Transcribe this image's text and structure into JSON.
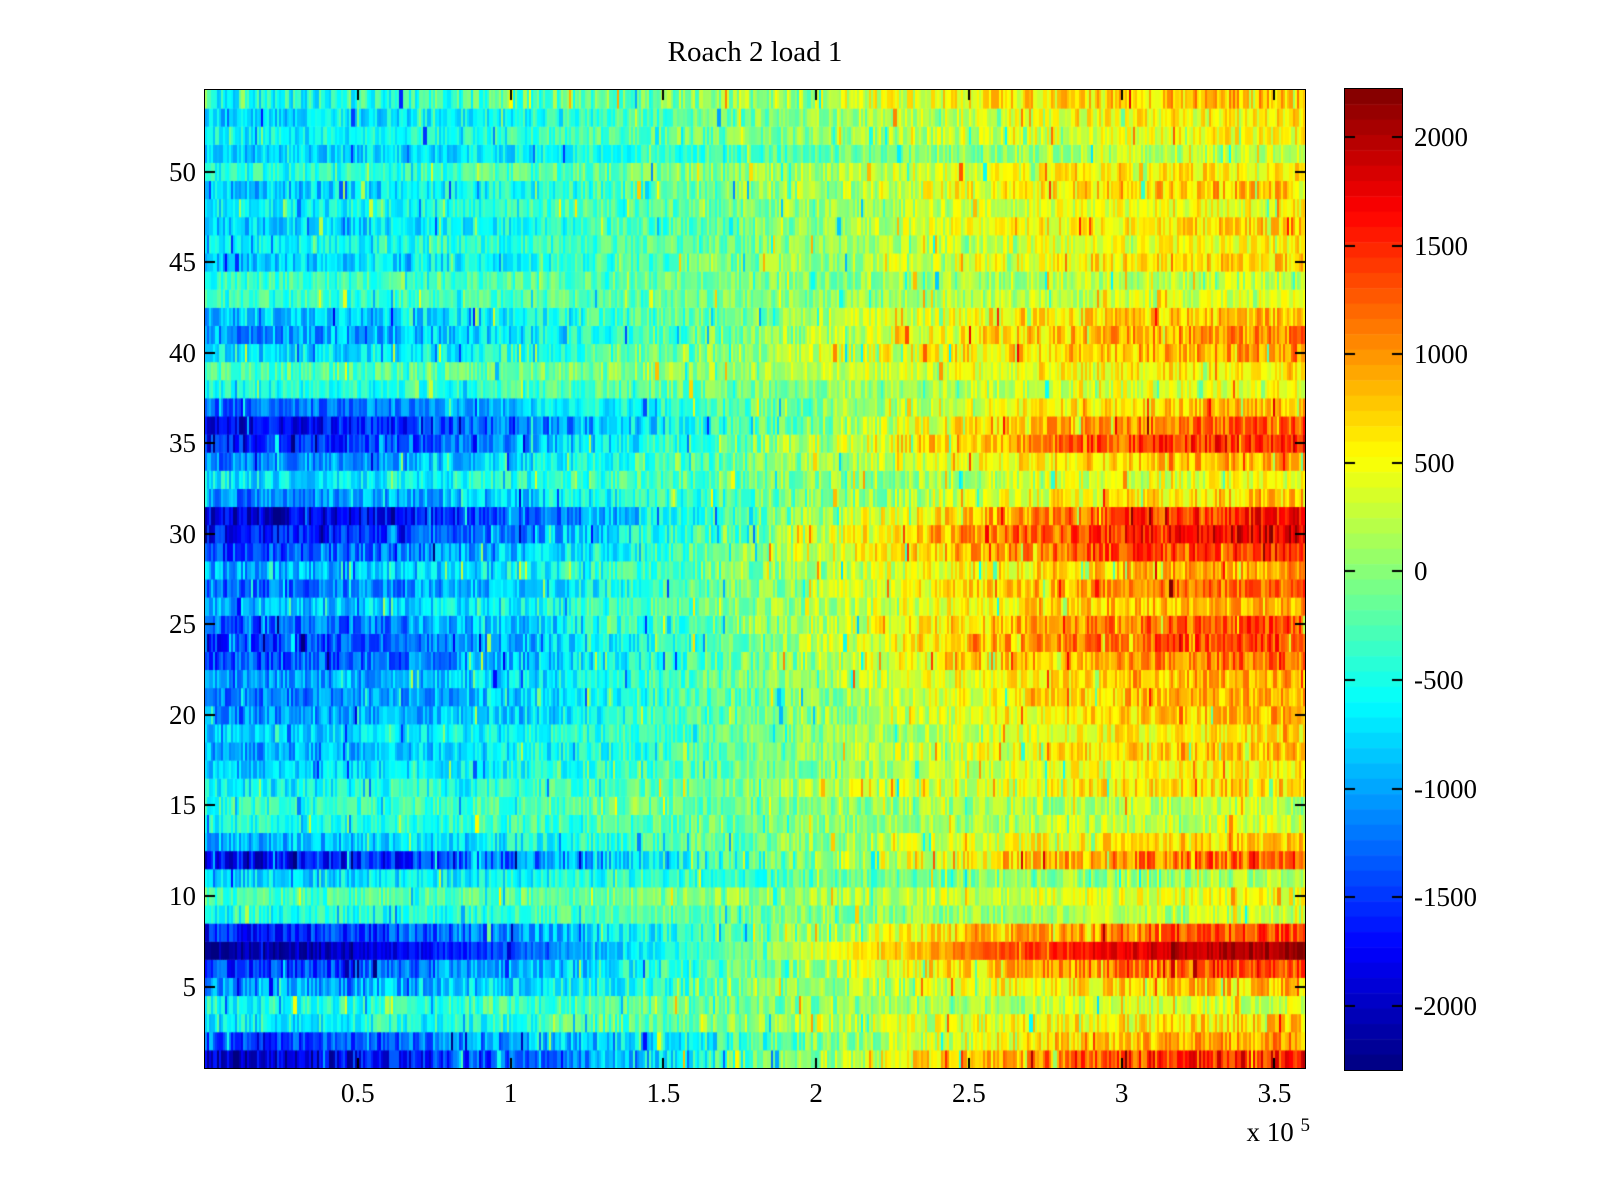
{
  "title": "Roach 2 load 1",
  "chart_data": {
    "type": "heatmap",
    "title": "Roach 2 load 1",
    "xlabel": "",
    "ylabel": "",
    "x_range_e5": [
      0,
      3.6
    ],
    "x_ticks": [
      0.5,
      1,
      1.5,
      2,
      2.5,
      3,
      3.5
    ],
    "x_tick_labels": [
      "0.5",
      "1",
      "1.5",
      "2",
      "2.5",
      "3",
      "3.5"
    ],
    "x_scale_label": {
      "base": "x 10",
      "exp": "5"
    },
    "y_range": [
      0.5,
      54.5
    ],
    "y_ticks": [
      5,
      10,
      15,
      20,
      25,
      30,
      35,
      40,
      45,
      50
    ],
    "y_tick_labels": [
      "5",
      "10",
      "15",
      "20",
      "25",
      "30",
      "35",
      "40",
      "45",
      "50"
    ],
    "n_rows": 54,
    "colormap": "jet",
    "grid": false,
    "clim": [
      -2295,
      2221
    ],
    "colorbar": {
      "location": "right",
      "ticks": [
        2000,
        1500,
        1000,
        500,
        0,
        -500,
        -1000,
        -1500,
        -2000
      ],
      "tick_labels": [
        "2000",
        "1500",
        "1000",
        "500",
        "0",
        "-500",
        "-1000",
        "-1500",
        "-2000"
      ]
    },
    "row_profiles_note": "per data row (row 1 = bottom) : [value at left edge, value at right edge, noise amplitude]; values interpolate left-to-right with smoothstep",
    "row_profiles": [
      [
        -1950,
        1550,
        450
      ],
      [
        -1500,
        950,
        400
      ],
      [
        -650,
        700,
        380
      ],
      [
        -500,
        350,
        350
      ],
      [
        -1100,
        800,
        400
      ],
      [
        -1500,
        1300,
        400
      ],
      [
        -2150,
        2050,
        220
      ],
      [
        -1650,
        1350,
        380
      ],
      [
        -500,
        250,
        320
      ],
      [
        -300,
        450,
        320
      ],
      [
        -750,
        150,
        350
      ],
      [
        -1750,
        1250,
        450
      ],
      [
        -900,
        700,
        360
      ],
      [
        -500,
        320,
        320
      ],
      [
        -420,
        250,
        320
      ],
      [
        -650,
        700,
        360
      ],
      [
        -820,
        600,
        320
      ],
      [
        -1000,
        800,
        350
      ],
      [
        -820,
        620,
        320
      ],
      [
        -1100,
        820,
        350
      ],
      [
        -1200,
        900,
        360
      ],
      [
        -1100,
        920,
        360
      ],
      [
        -1400,
        1200,
        400
      ],
      [
        -1500,
        1400,
        400
      ],
      [
        -1320,
        1300,
        400
      ],
      [
        -920,
        900,
        360
      ],
      [
        -1300,
        1200,
        380
      ],
      [
        -1000,
        950,
        400
      ],
      [
        -1420,
        1500,
        400
      ],
      [
        -1750,
        1750,
        420
      ],
      [
        -1950,
        1550,
        400
      ],
      [
        -1150,
        750,
        400
      ],
      [
        -700,
        420,
        350
      ],
      [
        -1100,
        900,
        360
      ],
      [
        -1620,
        1520,
        400
      ],
      [
        -1800,
        1250,
        400
      ],
      [
        -1250,
        820,
        350
      ],
      [
        -520,
        420,
        320
      ],
      [
        -320,
        620,
        320
      ],
      [
        -720,
        950,
        400
      ],
      [
        -1050,
        1020,
        400
      ],
      [
        -900,
        820,
        360
      ],
      [
        -420,
        320,
        310
      ],
      [
        -380,
        250,
        310
      ],
      [
        -820,
        720,
        350
      ],
      [
        -620,
        520,
        320
      ],
      [
        -820,
        720,
        350
      ],
      [
        -620,
        520,
        320
      ],
      [
        -820,
        820,
        400
      ],
      [
        -480,
        620,
        330
      ],
      [
        -820,
        250,
        320
      ],
      [
        -620,
        520,
        330
      ],
      [
        -780,
        620,
        330
      ],
      [
        -520,
        820,
        400
      ]
    ],
    "noise_seed": 123456,
    "layout_hints": {
      "background": "#ffffff",
      "axis_color": "#000000",
      "tick_direction": "in",
      "box": true
    }
  }
}
